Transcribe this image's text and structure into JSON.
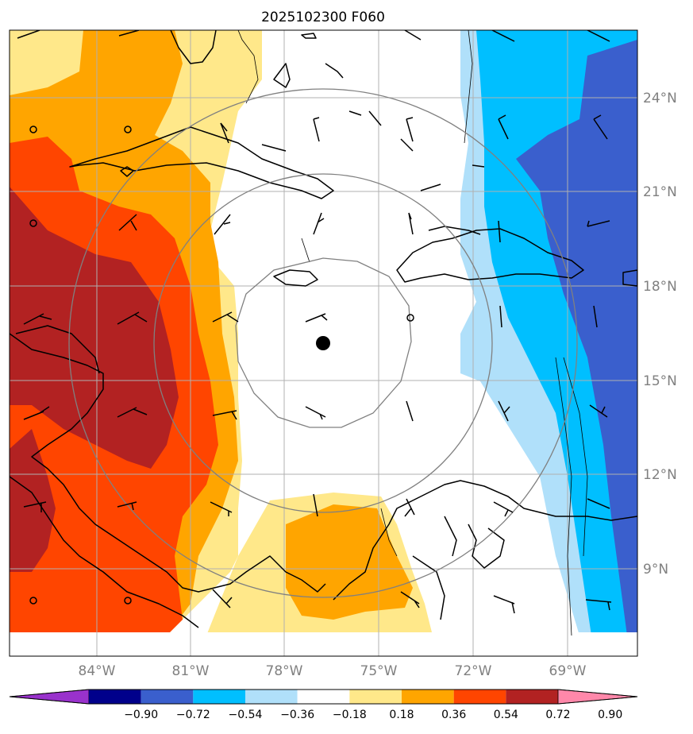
{
  "title": "2025102300 F060",
  "lat_labels": [
    "24°N",
    "21°N",
    "18°N",
    "15°N",
    "12°N",
    "9°N"
  ],
  "lon_labels": [
    "84°W",
    "81°W",
    "78°W",
    "75°W",
    "72°W",
    "69°W"
  ],
  "colorbar": {
    "levels": [
      "−0.90",
      "−0.72",
      "−0.54",
      "−0.36",
      "−0.18",
      "0.18",
      "0.36",
      "0.54",
      "0.72",
      "0.90"
    ],
    "colors": [
      "#9932cc",
      "#00008b",
      "#3a5fcd",
      "#00bfff",
      "#b0e0fa",
      "#ffffff",
      "#ffe88a",
      "#ffa500",
      "#ff4500",
      "#b22222",
      "#ff88aa"
    ]
  },
  "colors": {
    "grid": "#b0b0b0",
    "range_rings": "#808080",
    "coastline": "#000000",
    "center_marker": "#000000"
  }
}
